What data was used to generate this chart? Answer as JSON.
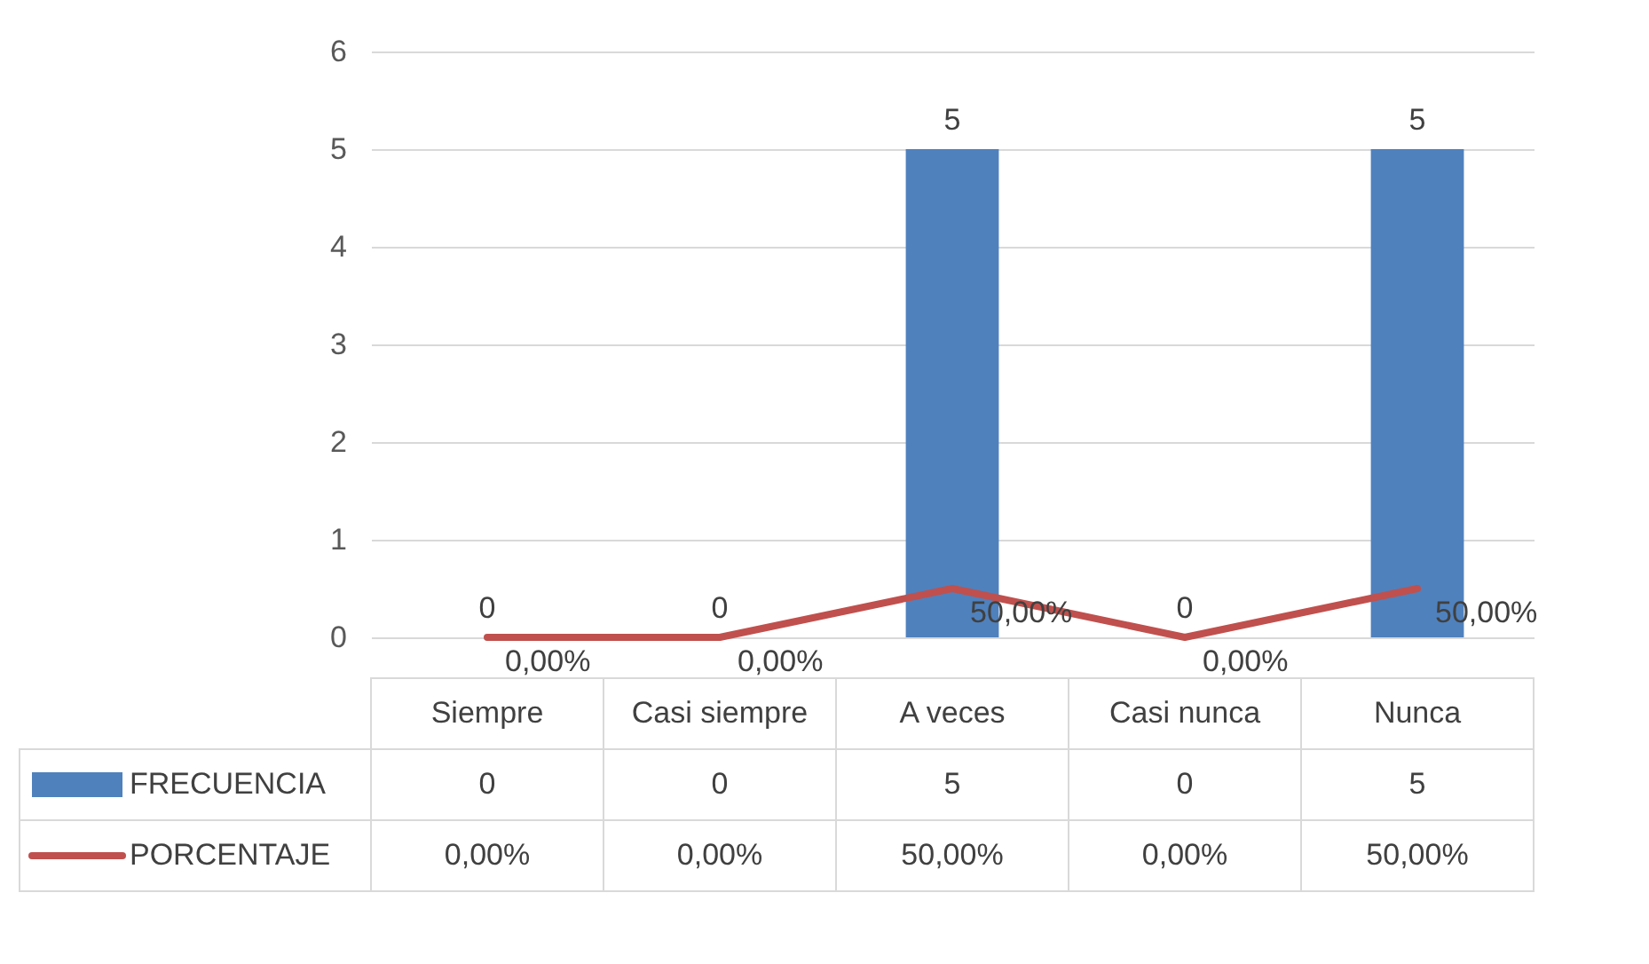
{
  "chart_data": {
    "type": "bar",
    "categories": [
      "Siempre",
      "Casi siempre",
      "A veces",
      "Casi nunca",
      "Nunca"
    ],
    "series": [
      {
        "name": "FRECUENCIA",
        "color": "#4f81bd",
        "values": [
          0,
          0,
          5,
          0,
          5
        ],
        "value_labels": [
          "0",
          "0",
          "5",
          "0",
          "5"
        ]
      },
      {
        "name": "PORCENTAJE",
        "type": "line",
        "color": "#c0504d",
        "values": [
          0,
          0,
          0.5,
          0,
          0.5
        ],
        "value_labels": [
          "0,00%",
          "0,00%",
          "50,00%",
          "0,00%",
          "50,00%"
        ]
      }
    ],
    "ylim": [
      0,
      6
    ],
    "yticks": [
      0,
      1,
      2,
      3,
      4,
      5,
      6
    ],
    "grid": "y",
    "legend": "bottom"
  }
}
